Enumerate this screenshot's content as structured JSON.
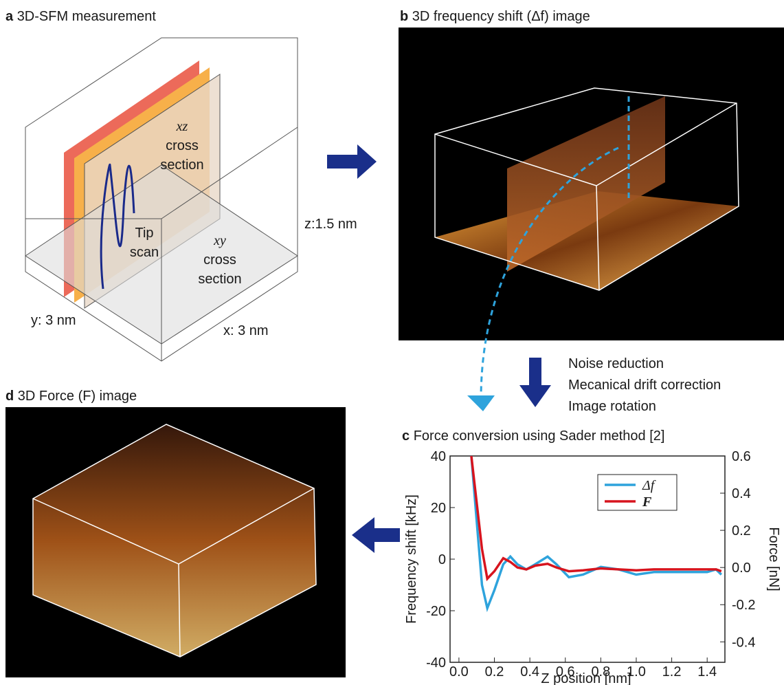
{
  "panels": {
    "a": {
      "label": "a",
      "title": "3D-SFM measurement",
      "xz": [
        "xz",
        "cross",
        "section"
      ],
      "tip": [
        "Tip",
        "scan"
      ],
      "xy": [
        "xy",
        "cross",
        "section"
      ],
      "z_dim": "z:1.5 nm",
      "y_dim": "y: 3 nm",
      "x_dim": "x: 3 nm"
    },
    "b": {
      "label": "b",
      "title": "3D frequency shift (Δf) image"
    },
    "d": {
      "label": "d",
      "title": "3D Force (F) image"
    },
    "steps": [
      "Noise reduction",
      "Mecanical drift correction",
      "Image rotation"
    ]
  },
  "chart_data": {
    "type": "line",
    "label": "c",
    "title": "Force conversion using Sader method [2]",
    "x_label": "Z position [nm]",
    "y_label": "Frequency shift [kHz]",
    "y2_label": "Force [nN]",
    "x": [
      0.07,
      0.1,
      0.13,
      0.16,
      0.2,
      0.25,
      0.29,
      0.33,
      0.38,
      0.43,
      0.5,
      0.55,
      0.62,
      0.7,
      0.8,
      0.9,
      1.0,
      1.1,
      1.2,
      1.3,
      1.4,
      1.45,
      1.48
    ],
    "series": [
      {
        "name": "Δf",
        "color": "#2ea3dc",
        "values": [
          40,
          15,
          -10,
          -19,
          -12,
          -2,
          1,
          -2,
          -4,
          -2,
          1,
          -2,
          -7,
          -6,
          -3,
          -4,
          -6,
          -5,
          -5,
          -5,
          -5,
          -4,
          -6
        ]
      },
      {
        "name": "F",
        "color": "#d7141e",
        "axis": "y2",
        "values": [
          0.6,
          0.35,
          0.1,
          -0.06,
          -0.02,
          0.05,
          0.03,
          0.0,
          -0.01,
          0.01,
          0.02,
          0.0,
          -0.02,
          -0.015,
          -0.005,
          -0.01,
          -0.015,
          -0.01,
          -0.01,
          -0.01,
          -0.01,
          -0.01,
          -0.02
        ]
      }
    ],
    "xlim": [
      -0.05,
      1.5
    ],
    "ylim": [
      -40,
      40
    ],
    "y2lim": [
      -0.51,
      0.6
    ],
    "xticks": [
      {
        "value": 0,
        "label": "0.0"
      },
      0.2,
      0.4,
      0.6,
      0.8,
      {
        "value": 1,
        "label": "1.0"
      },
      1.2,
      1.4
    ],
    "yticks": [
      -40,
      -20,
      0,
      20,
      40
    ],
    "y2ticks": [
      -0.4,
      -0.2,
      {
        "value": 0,
        "label": "0.0"
      },
      0.2,
      0.4,
      0.6
    ],
    "legend": "upper right"
  }
}
